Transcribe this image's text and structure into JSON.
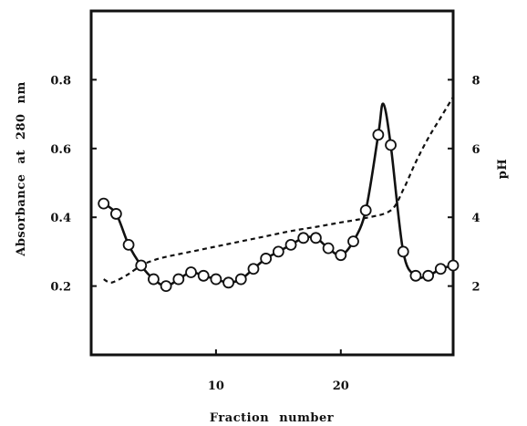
{
  "chart_data": {
    "type": "line",
    "xlabel": "Fraction number",
    "ylabel_left": "Absorbance at 280 nm",
    "ylabel_right": "pH",
    "xlim": [
      0,
      29
    ],
    "ylim_left": [
      0.0,
      1.0
    ],
    "ylim_right": [
      0,
      10
    ],
    "x_ticks": [
      10,
      20
    ],
    "y_ticks_left": [
      0.2,
      0.4,
      0.6,
      0.8
    ],
    "y_ticks_right": [
      2,
      4,
      6,
      8
    ],
    "grid": false,
    "legend": "none",
    "series": [
      {
        "axis": "left",
        "style": "solid-with-open-circles",
        "x": [
          1,
          2,
          3,
          4,
          5,
          6,
          7,
          8,
          9,
          10,
          11,
          12,
          13,
          14,
          15,
          16,
          17,
          18,
          19,
          20,
          21,
          22,
          23,
          24,
          25,
          26,
          27,
          28,
          29
        ],
        "y": [
          0.44,
          0.41,
          0.32,
          0.26,
          0.22,
          0.2,
          0.22,
          0.24,
          0.23,
          0.22,
          0.21,
          0.22,
          0.25,
          0.28,
          0.3,
          0.32,
          0.34,
          0.34,
          0.31,
          0.29,
          0.33,
          0.42,
          0.64,
          0.61,
          0.3,
          0.23,
          0.23,
          0.25,
          0.26
        ],
        "peak": {
          "x": 23.4,
          "y": 0.73
        }
      },
      {
        "axis": "right",
        "style": "dashed",
        "x": [
          1,
          1.5,
          2,
          3,
          4,
          5,
          6,
          8,
          10,
          12,
          14,
          16,
          18,
          20,
          22,
          24,
          25,
          26,
          27,
          28,
          29
        ],
        "y": [
          2.2,
          2.1,
          2.15,
          2.35,
          2.6,
          2.75,
          2.85,
          3.0,
          3.15,
          3.3,
          3.45,
          3.6,
          3.72,
          3.85,
          3.98,
          4.2,
          4.8,
          5.6,
          6.3,
          6.9,
          7.5
        ]
      }
    ]
  }
}
